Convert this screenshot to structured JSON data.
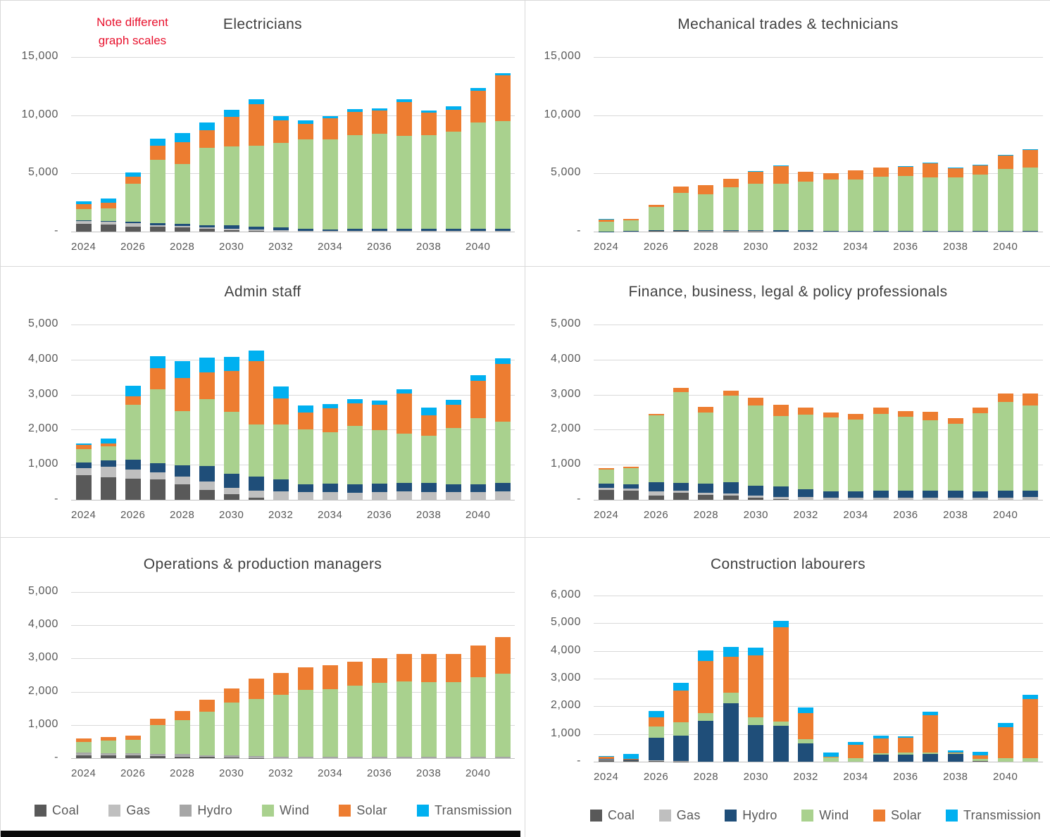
{
  "note": {
    "line1": "Note different",
    "line2": "graph scales"
  },
  "colors": {
    "coal": "#595959",
    "gas": "#bfbfbf",
    "hydro_gray": "#a6a6a6",
    "hydro_navy": "#1f4e79",
    "wind": "#a9d18e",
    "solar": "#ed7d31",
    "transmission": "#00b0f0",
    "title_text": "#404040",
    "axis_text": "#595959",
    "gridline": "#d9d9d9",
    "note_red": "#e8112d"
  },
  "legend_left": {
    "items": [
      {
        "label": "Coal",
        "color_key": "coal"
      },
      {
        "label": "Gas",
        "color_key": "gas"
      },
      {
        "label": "Hydro",
        "color_key": "hydro_gray"
      },
      {
        "label": "Wind",
        "color_key": "wind"
      },
      {
        "label": "Solar",
        "color_key": "solar"
      },
      {
        "label": "Transmission",
        "color_key": "transmission"
      }
    ]
  },
  "legend_right": {
    "items": [
      {
        "label": "Coal",
        "color_key": "coal"
      },
      {
        "label": "Gas",
        "color_key": "gas"
      },
      {
        "label": "Hydro",
        "color_key": "hydro_navy"
      },
      {
        "label": "Wind",
        "color_key": "wind"
      },
      {
        "label": "Solar",
        "color_key": "solar"
      },
      {
        "label": "Transmission",
        "color_key": "transmission"
      }
    ]
  },
  "x_tick_years": [
    "2024",
    "2026",
    "2028",
    "2030",
    "2032",
    "2034",
    "2036",
    "2038",
    "2040"
  ],
  "chart_data": [
    {
      "type": "stacked-bar",
      "id": "electricians",
      "title": "Electricians",
      "ylim": [
        0,
        15000
      ],
      "yticks": [
        15000,
        10000,
        5000,
        0
      ],
      "grid": true,
      "legend_position": "bottom-shared",
      "categories": [
        "2024",
        "2025",
        "2026",
        "2027",
        "2028",
        "2029",
        "2030",
        "2031",
        "2032",
        "2033",
        "2034",
        "2035",
        "2036",
        "2037",
        "2038",
        "2039",
        "2040",
        "2041"
      ],
      "series_order": [
        "Coal",
        "Gas",
        "Hydro",
        "Wind",
        "Solar",
        "Transmission"
      ],
      "hydro_color_key": "hydro_navy",
      "series": {
        "Coal": [
          650,
          590,
          450,
          400,
          350,
          250,
          150,
          50,
          0,
          0,
          0,
          0,
          0,
          0,
          0,
          0,
          0,
          0
        ],
        "Gas": [
          250,
          240,
          250,
          150,
          150,
          120,
          120,
          150,
          100,
          80,
          80,
          80,
          80,
          80,
          80,
          80,
          80,
          80
        ],
        "Hydro": [
          50,
          60,
          120,
          150,
          150,
          200,
          250,
          250,
          250,
          150,
          120,
          150,
          150,
          150,
          150,
          150,
          150,
          150
        ],
        "Wind": [
          1000,
          1120,
          3280,
          5480,
          5170,
          6630,
          6830,
          6950,
          7250,
          7700,
          7750,
          8050,
          8150,
          8000,
          8050,
          8350,
          9150,
          9250
        ],
        "Solar": [
          400,
          450,
          600,
          1200,
          1880,
          1500,
          2500,
          3550,
          1950,
          1350,
          1800,
          2000,
          2000,
          2900,
          1950,
          1900,
          2700,
          3950
        ],
        "Transmission": [
          250,
          360,
          400,
          600,
          800,
          700,
          600,
          450,
          380,
          250,
          200,
          220,
          200,
          220,
          200,
          280,
          260,
          180
        ]
      }
    },
    {
      "type": "stacked-bar",
      "id": "mechanical",
      "title": "Mechanical trades & technicians",
      "ylim": [
        0,
        15000
      ],
      "yticks": [
        15000,
        10000,
        5000,
        0
      ],
      "grid": true,
      "legend_position": "bottom-shared",
      "categories": [
        "2024",
        "2025",
        "2026",
        "2027",
        "2028",
        "2029",
        "2030",
        "2031",
        "2032",
        "2033",
        "2034",
        "2035",
        "2036",
        "2037",
        "2038",
        "2039",
        "2040",
        "2041"
      ],
      "series_order": [
        "Coal",
        "Gas",
        "Hydro",
        "Wind",
        "Solar",
        "Transmission"
      ],
      "hydro_color_key": "hydro_navy",
      "series": {
        "Coal": [
          0,
          0,
          50,
          40,
          30,
          20,
          10,
          0,
          0,
          0,
          0,
          0,
          0,
          0,
          0,
          0,
          0,
          0
        ],
        "Gas": [
          0,
          30,
          30,
          30,
          30,
          30,
          30,
          30,
          30,
          30,
          30,
          30,
          30,
          30,
          30,
          30,
          30,
          30
        ],
        "Hydro": [
          20,
          20,
          40,
          50,
          50,
          60,
          70,
          70,
          70,
          50,
          50,
          50,
          50,
          50,
          50,
          50,
          50,
          50
        ],
        "Wind": [
          850,
          900,
          1990,
          3230,
          3090,
          3720,
          3980,
          3990,
          4190,
          4380,
          4400,
          4650,
          4690,
          4600,
          4580,
          4840,
          5280,
          5400
        ],
        "Solar": [
          150,
          120,
          170,
          520,
          770,
          690,
          1060,
          1520,
          830,
          560,
          770,
          760,
          800,
          1210,
          790,
          770,
          1180,
          1530
        ],
        "Transmission": [
          60,
          30,
          30,
          30,
          30,
          30,
          30,
          50,
          40,
          30,
          30,
          30,
          30,
          40,
          30,
          30,
          40,
          50
        ]
      }
    },
    {
      "type": "stacked-bar",
      "id": "admin-staff",
      "title": "Admin staff",
      "ylim": [
        0,
        5000
      ],
      "yticks": [
        5000,
        4000,
        3000,
        2000,
        1000,
        0
      ],
      "grid": true,
      "legend_position": "bottom-shared",
      "categories": [
        "2024",
        "2025",
        "2026",
        "2027",
        "2028",
        "2029",
        "2030",
        "2031",
        "2032",
        "2033",
        "2034",
        "2035",
        "2036",
        "2037",
        "2038",
        "2039",
        "2040",
        "2041"
      ],
      "series_order": [
        "Coal",
        "Gas",
        "Hydro",
        "Wind",
        "Solar",
        "Transmission"
      ],
      "hydro_color_key": "hydro_navy",
      "series": {
        "Coal": [
          700,
          650,
          600,
          590,
          450,
          280,
          160,
          60,
          0,
          0,
          0,
          0,
          0,
          0,
          0,
          0,
          0,
          0
        ],
        "Gas": [
          200,
          300,
          270,
          190,
          210,
          250,
          190,
          210,
          250,
          230,
          220,
          200,
          230,
          240,
          230,
          230,
          230,
          240
        ],
        "Hydro": [
          170,
          170,
          280,
          270,
          320,
          430,
          400,
          400,
          330,
          220,
          240,
          250,
          230,
          250,
          260,
          220,
          220,
          240
        ],
        "Wind": [
          380,
          400,
          1570,
          2110,
          1560,
          1910,
          1760,
          1480,
          1560,
          1550,
          1460,
          1650,
          1520,
          1390,
          1330,
          1600,
          1870,
          1750
        ],
        "Solar": [
          110,
          80,
          230,
          590,
          930,
          760,
          1170,
          1800,
          760,
          500,
          690,
          660,
          740,
          1160,
          590,
          660,
          1080,
          1640
        ],
        "Transmission": [
          40,
          150,
          300,
          350,
          480,
          430,
          395,
          310,
          340,
          190,
          120,
          110,
          110,
          120,
          220,
          150,
          160,
          170
        ]
      }
    },
    {
      "type": "stacked-bar",
      "id": "finance",
      "title": "Finance, business, legal & policy professionals",
      "ylim": [
        0,
        5000
      ],
      "yticks": [
        5000,
        4000,
        3000,
        2000,
        1000,
        0
      ],
      "grid": true,
      "legend_position": "bottom-shared",
      "categories": [
        "2024",
        "2025",
        "2026",
        "2027",
        "2028",
        "2029",
        "2030",
        "2031",
        "2032",
        "2033",
        "2034",
        "2035",
        "2036",
        "2037",
        "2038",
        "2039",
        "2040",
        "2041"
      ],
      "series_order": [
        "Coal",
        "Gas",
        "Hydro",
        "Wind",
        "Solar",
        "Transmission"
      ],
      "hydro_color_key": "hydro_navy",
      "series": {
        "Coal": [
          280,
          270,
          120,
          200,
          140,
          120,
          70,
          30,
          0,
          0,
          0,
          0,
          0,
          0,
          0,
          0,
          0,
          0
        ],
        "Gas": [
          60,
          60,
          130,
          60,
          60,
          60,
          60,
          60,
          80,
          70,
          70,
          70,
          70,
          70,
          70,
          70,
          70,
          80
        ],
        "Hydro": [
          120,
          120,
          250,
          220,
          270,
          330,
          280,
          290,
          230,
          180,
          180,
          200,
          190,
          200,
          200,
          180,
          190,
          180
        ],
        "Wind": [
          410,
          460,
          1910,
          2590,
          2020,
          2460,
          2290,
          2020,
          2130,
          2110,
          2040,
          2190,
          2110,
          2000,
          1890,
          2220,
          2540,
          2430
        ],
        "Solar": [
          30,
          30,
          40,
          130,
          160,
          140,
          220,
          320,
          200,
          130,
          170,
          170,
          170,
          240,
          180,
          170,
          240,
          350
        ],
        "Transmission": [
          0,
          0,
          0,
          0,
          0,
          0,
          0,
          0,
          0,
          0,
          0,
          0,
          0,
          0,
          0,
          0,
          0,
          0
        ]
      }
    },
    {
      "type": "stacked-bar",
      "id": "operations",
      "title": "Operations & production managers",
      "ylim": [
        0,
        5000
      ],
      "yticks": [
        5000,
        4000,
        3000,
        2000,
        1000,
        0
      ],
      "grid": true,
      "legend_position": "bottom",
      "categories": [
        "2024",
        "2025",
        "2026",
        "2027",
        "2028",
        "2029",
        "2030",
        "2031",
        "2032",
        "2033",
        "2034",
        "2035",
        "2036",
        "2037",
        "2038",
        "2039",
        "2040",
        "2041"
      ],
      "series_order": [
        "Coal",
        "Gas",
        "Hydro",
        "Wind",
        "Solar",
        "Transmission"
      ],
      "hydro_color_key": "hydro_gray",
      "series": {
        "Coal": [
          90,
          90,
          80,
          70,
          50,
          40,
          20,
          10,
          0,
          0,
          0,
          0,
          0,
          0,
          0,
          0,
          0,
          0
        ],
        "Gas": [
          20,
          20,
          20,
          20,
          20,
          15,
          10,
          10,
          10,
          10,
          10,
          10,
          10,
          10,
          10,
          10,
          10,
          10
        ],
        "Hydro": [
          50,
          40,
          50,
          40,
          60,
          40,
          50,
          50,
          40,
          40,
          40,
          40,
          40,
          40,
          40,
          40,
          40,
          40
        ],
        "Wind": [
          330,
          380,
          400,
          870,
          1020,
          1310,
          1590,
          1710,
          1850,
          2000,
          2030,
          2140,
          2210,
          2260,
          2240,
          2240,
          2390,
          2500
        ],
        "Solar": [
          110,
          115,
          120,
          195,
          280,
          345,
          430,
          625,
          655,
          675,
          710,
          710,
          755,
          830,
          840,
          845,
          950,
          1095
        ],
        "Transmission": [
          0,
          0,
          0,
          0,
          0,
          0,
          0,
          0,
          0,
          0,
          0,
          0,
          0,
          0,
          0,
          0,
          0,
          0
        ]
      }
    },
    {
      "type": "stacked-bar",
      "id": "construction",
      "title": "Construction labourers",
      "ylim": [
        0,
        6000
      ],
      "yticks": [
        6000,
        5000,
        4000,
        3000,
        2000,
        1000,
        0
      ],
      "grid": true,
      "legend_position": "bottom",
      "categories": [
        "2024",
        "2025",
        "2026",
        "2027",
        "2028",
        "2029",
        "2030",
        "2031",
        "2032",
        "2033",
        "2034",
        "2035",
        "2036",
        "2037",
        "2038",
        "2039",
        "2040",
        "2041"
      ],
      "series_order": [
        "Coal",
        "Gas",
        "Hydro",
        "Wind",
        "Solar",
        "Transmission"
      ],
      "hydro_color_key": "hydro_navy",
      "series": {
        "Coal": [
          60,
          50,
          30,
          10,
          0,
          0,
          0,
          0,
          0,
          0,
          0,
          0,
          0,
          0,
          0,
          20,
          0,
          0
        ],
        "Gas": [
          20,
          10,
          10,
          10,
          10,
          10,
          10,
          10,
          10,
          0,
          0,
          0,
          0,
          0,
          0,
          10,
          0,
          0
        ],
        "Hydro": [
          20,
          20,
          820,
          910,
          1460,
          2090,
          1310,
          1280,
          640,
          0,
          0,
          250,
          260,
          280,
          280,
          0,
          0,
          0
        ],
        "Wind": [
          0,
          0,
          410,
          500,
          290,
          380,
          290,
          160,
          170,
          150,
          120,
          60,
          60,
          60,
          20,
          80,
          140,
          130
        ],
        "Solar": [
          90,
          20,
          330,
          1150,
          1870,
          1310,
          2230,
          3400,
          930,
          40,
          490,
          520,
          540,
          1330,
          30,
          120,
          1110,
          2140
        ],
        "Transmission": [
          10,
          170,
          240,
          280,
          390,
          360,
          270,
          240,
          220,
          150,
          90,
          105,
          50,
          130,
          70,
          125,
          140,
          140
        ]
      }
    }
  ]
}
